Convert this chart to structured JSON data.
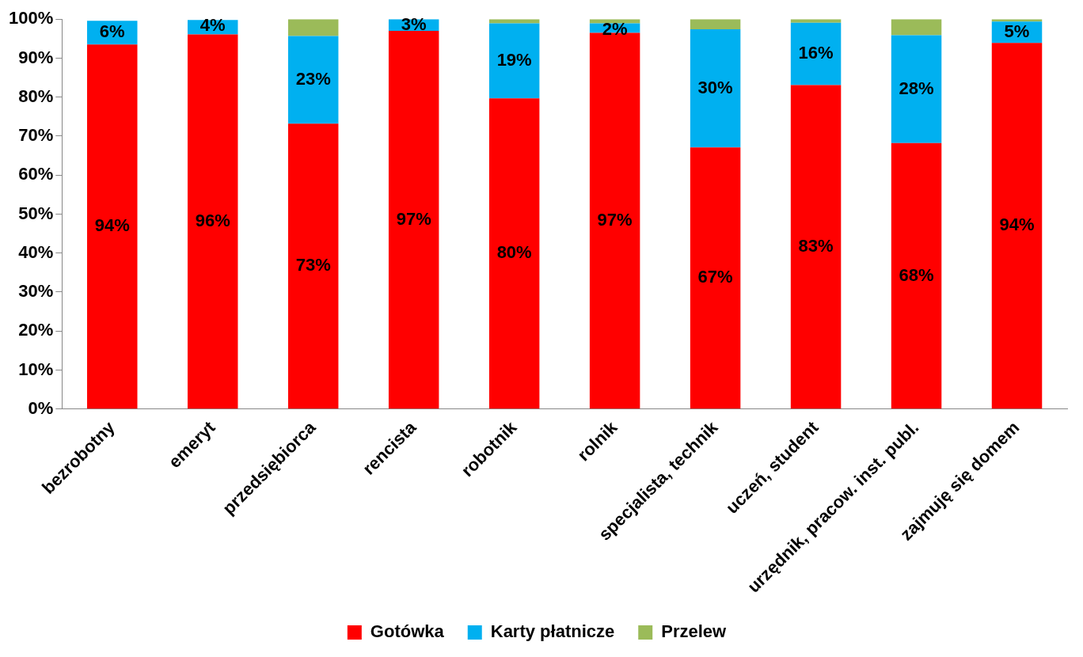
{
  "chart_data": {
    "type": "bar",
    "stacked": true,
    "categories": [
      "bezrobotny",
      "emeryt",
      "przedsiębiorca",
      "rencista",
      "robotnik",
      "rolnik",
      "specjalista, technik",
      "uczeń, student",
      "urzędnik, pracow. inst. publ.",
      "zajmuję się domem"
    ],
    "series": [
      {
        "name": "Gotówka",
        "color": "#ff0000",
        "values": [
          93.5,
          96.1,
          73.2,
          97.0,
          79.7,
          96.5,
          67.1,
          83.1,
          68.2,
          93.9
        ],
        "value_labels": [
          "94%",
          "96%",
          "73%",
          "97%",
          "80%",
          "97%",
          "67%",
          "83%",
          "68%",
          "94%"
        ]
      },
      {
        "name": "Karty płatnicze",
        "color": "#00b0f0",
        "values": [
          6.1,
          3.7,
          22.5,
          3.0,
          19.2,
          2.4,
          30.3,
          16.0,
          27.7,
          5.5
        ],
        "value_labels": [
          "6%",
          "4%",
          "23%",
          "3%",
          "19%",
          "2%",
          "30%",
          "16%",
          "28%",
          "5%"
        ]
      },
      {
        "name": "Przelew",
        "color": "#9bbb59",
        "values": [
          null,
          null,
          4.3,
          0,
          1.1,
          1.1,
          2.6,
          0.9,
          4.1,
          0.6
        ]
      }
    ],
    "ylim": [
      0,
      100
    ],
    "yticks": [
      {
        "value": 0,
        "label": "0%"
      },
      {
        "value": 10,
        "label": "10%"
      },
      {
        "value": 20,
        "label": "20%"
      },
      {
        "value": 30,
        "label": "30%"
      },
      {
        "value": 40,
        "label": "40%"
      },
      {
        "value": 50,
        "label": "50%"
      },
      {
        "value": 60,
        "label": "60%"
      },
      {
        "value": 70,
        "label": "70%"
      },
      {
        "value": 80,
        "label": "80%"
      },
      {
        "value": 90,
        "label": "90%"
      },
      {
        "value": 100,
        "label": "100%"
      }
    ],
    "grid": false,
    "legend": "bottom"
  }
}
